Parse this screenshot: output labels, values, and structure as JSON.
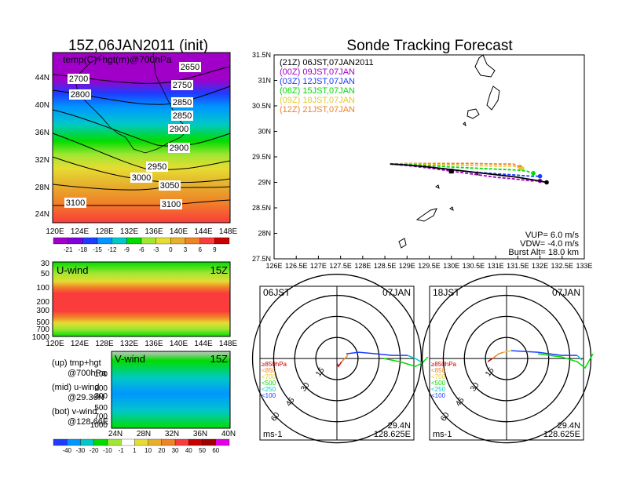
{
  "left_title": "15Z,06JAN2011 (init)",
  "right_title": "Sonde Tracking Forecast",
  "map_panel": {
    "overlay_label": "temp(C)+hgt(m)@700hPa",
    "lat_labels": [
      "44N",
      "40N",
      "36N",
      "32N",
      "28N",
      "24N"
    ],
    "lon_labels": [
      "120E",
      "124E",
      "128E",
      "132E",
      "136E",
      "140E",
      "144E",
      "148E"
    ],
    "contour_labels": [
      "2650",
      "2700",
      "2750",
      "2800",
      "2850",
      "2850",
      "2900",
      "2900",
      "2950",
      "3000",
      "3050",
      "3100",
      "3100"
    ],
    "colorbar_ticks": [
      "-21",
      "-18",
      "-15",
      "-12",
      "-9",
      "-6",
      "-3",
      "0",
      "3",
      "6",
      "9"
    ],
    "colorbar_colors": [
      "#a000c8",
      "#8200dc",
      "#1e3cff",
      "#0096ff",
      "#00c8c8",
      "#00dc00",
      "#a0e632",
      "#e6dc32",
      "#e6af2d",
      "#f08228",
      "#fa3c3c",
      "#c80000"
    ]
  },
  "uwind_panel": {
    "label": "U-wind",
    "time": "15Z",
    "yticks": [
      "30",
      "50",
      "100",
      "200",
      "300",
      "500",
      "700",
      "1000"
    ],
    "xticks": [
      "120E",
      "124E",
      "128E",
      "132E",
      "136E",
      "140E",
      "144E",
      "148E"
    ]
  },
  "vwind_panel": {
    "label": "V-wind",
    "time": "15Z",
    "yticks": [
      "100",
      "200",
      "300",
      "500",
      "700",
      "1000"
    ],
    "xticks": [
      "24N",
      "28N",
      "32N",
      "36N",
      "40N"
    ],
    "colorbar_ticks": [
      "-40",
      "-30",
      "-20",
      "-10",
      "-1",
      "1",
      "10",
      "20",
      "30",
      "40",
      "50",
      "60"
    ],
    "colorbar_colors": [
      "#1e3cff",
      "#0096ff",
      "#00c8c8",
      "#00dc00",
      "#a0e632",
      "#ffffff",
      "#e6dc32",
      "#e6af2d",
      "#f08228",
      "#fa3c3c",
      "#c80000",
      "#a00000",
      "#e100e1"
    ]
  },
  "panel_descriptions": [
    {
      "line1": "(up) tmp+hgt",
      "line2": "@700hPa"
    },
    {
      "line1": "(mid) u-wind",
      "line2": "@29.36N"
    },
    {
      "line1": "(bot) v-wind",
      "line2": "@128.66E"
    }
  ],
  "track_panel": {
    "lat_ticks": [
      "31.5N",
      "31N",
      "30.5N",
      "30N",
      "29.5N",
      "29N",
      "28.5N",
      "28N",
      "27.5N"
    ],
    "lon_ticks": [
      "126E",
      "126.5E",
      "127E",
      "127.5E",
      "128E",
      "128.5E",
      "129E",
      "129.5E",
      "130E",
      "130.5E",
      "131E",
      "131.5E",
      "132E",
      "132.5E",
      "133E"
    ],
    "legend": [
      {
        "text": "(21Z)  06JST,07JAN2011",
        "color": "#000000"
      },
      {
        "text": "(00Z)  09JST,07JAN",
        "color": "#a000c8"
      },
      {
        "text": "(03Z)  12JST,07JAN",
        "color": "#1e3cff"
      },
      {
        "text": "(06Z)  15JST,07JAN",
        "color": "#00dc00"
      },
      {
        "text": "(09Z)  18JST,07JAN",
        "color": "#e6c832"
      },
      {
        "text": "(12Z)  21JST,07JAN",
        "color": "#f08228"
      }
    ],
    "params": [
      "VUP= 6.0 m/s",
      "VDW= -4.0 m/s",
      "Burst Alt= 18.0 km"
    ]
  },
  "hodographs": [
    {
      "time": "06JST",
      "date": "07JAN",
      "lat": "29.4N",
      "lon": "128.625E",
      "unit": "ms-1",
      "ring_labels": [
        "15",
        "30",
        "45",
        "60"
      ],
      "levels": [
        {
          "text": "≥850hPa",
          "color": "#c80000"
        },
        {
          "text": "<850",
          "color": "#f08228"
        },
        {
          "text": "<700",
          "color": "#e6c832"
        },
        {
          "text": "<500",
          "color": "#00dc00"
        },
        {
          "text": "<250",
          "color": "#00c8c8"
        },
        {
          "text": "<100",
          "color": "#1e3cff"
        }
      ]
    },
    {
      "time": "18JST",
      "date": "07JAN",
      "lat": "29.4N",
      "lon": "128.625E",
      "unit": "ms-1",
      "ring_labels": [
        "15",
        "30",
        "45",
        "60"
      ],
      "levels": [
        {
          "text": "≥850hPa",
          "color": "#c80000"
        },
        {
          "text": "<850",
          "color": "#f08228"
        },
        {
          "text": "<700",
          "color": "#e6c832"
        },
        {
          "text": "<500",
          "color": "#00dc00"
        },
        {
          "text": "<250",
          "color": "#00c8c8"
        },
        {
          "text": "<100",
          "color": "#1e3cff"
        }
      ]
    }
  ],
  "chart_data": [
    {
      "type": "line",
      "title": "Sonde Tracking Forecast",
      "xlim": [
        126,
        133
      ],
      "ylim": [
        27.5,
        31.5
      ],
      "series": [
        {
          "name": "(21Z) 06JST,07JAN2011",
          "color": "#000000",
          "x": [
            128.62,
            129.0,
            129.5,
            130.0,
            130.5,
            131.0,
            131.5,
            131.9,
            132.15
          ],
          "y": [
            29.36,
            29.34,
            29.3,
            29.25,
            29.2,
            29.15,
            29.1,
            29.04,
            29.0
          ]
        },
        {
          "name": "(00Z) 09JST,07JAN",
          "color": "#a000c8",
          "x": [
            128.62,
            129.0,
            129.5,
            130.0,
            130.5,
            131.0,
            131.5,
            131.8,
            132.0
          ],
          "y": [
            29.36,
            29.33,
            29.28,
            29.22,
            29.16,
            29.1,
            29.06,
            29.03,
            29.03
          ]
        },
        {
          "name": "(03Z) 12JST,07JAN",
          "color": "#1e3cff",
          "x": [
            128.62,
            129.0,
            129.5,
            130.0,
            130.5,
            131.0,
            131.5,
            131.8,
            132.0
          ],
          "y": [
            29.36,
            29.34,
            29.3,
            29.25,
            29.2,
            29.17,
            29.14,
            29.12,
            29.12
          ]
        },
        {
          "name": "(06Z) 15JST,07JAN",
          "color": "#00dc00",
          "x": [
            128.62,
            129.0,
            129.5,
            130.0,
            130.5,
            131.0,
            131.5,
            131.7,
            131.85
          ],
          "y": [
            29.36,
            29.35,
            29.33,
            29.3,
            29.28,
            29.26,
            29.24,
            29.22,
            29.18
          ]
        },
        {
          "name": "(09Z) 18JST,07JAN",
          "color": "#e6c832",
          "x": [
            128.62,
            129.0,
            129.5,
            130.0,
            130.5,
            131.0,
            131.4,
            131.6
          ],
          "y": [
            29.36,
            29.36,
            29.35,
            29.34,
            29.33,
            29.32,
            29.32,
            29.27
          ]
        },
        {
          "name": "(12Z) 21JST,07JAN",
          "color": "#f08228",
          "x": [
            128.62,
            129.0,
            129.5,
            130.0,
            130.5,
            131.0,
            131.4,
            131.55
          ],
          "y": [
            29.36,
            29.37,
            29.37,
            29.37,
            29.37,
            29.36,
            29.36,
            29.3
          ]
        }
      ]
    }
  ]
}
